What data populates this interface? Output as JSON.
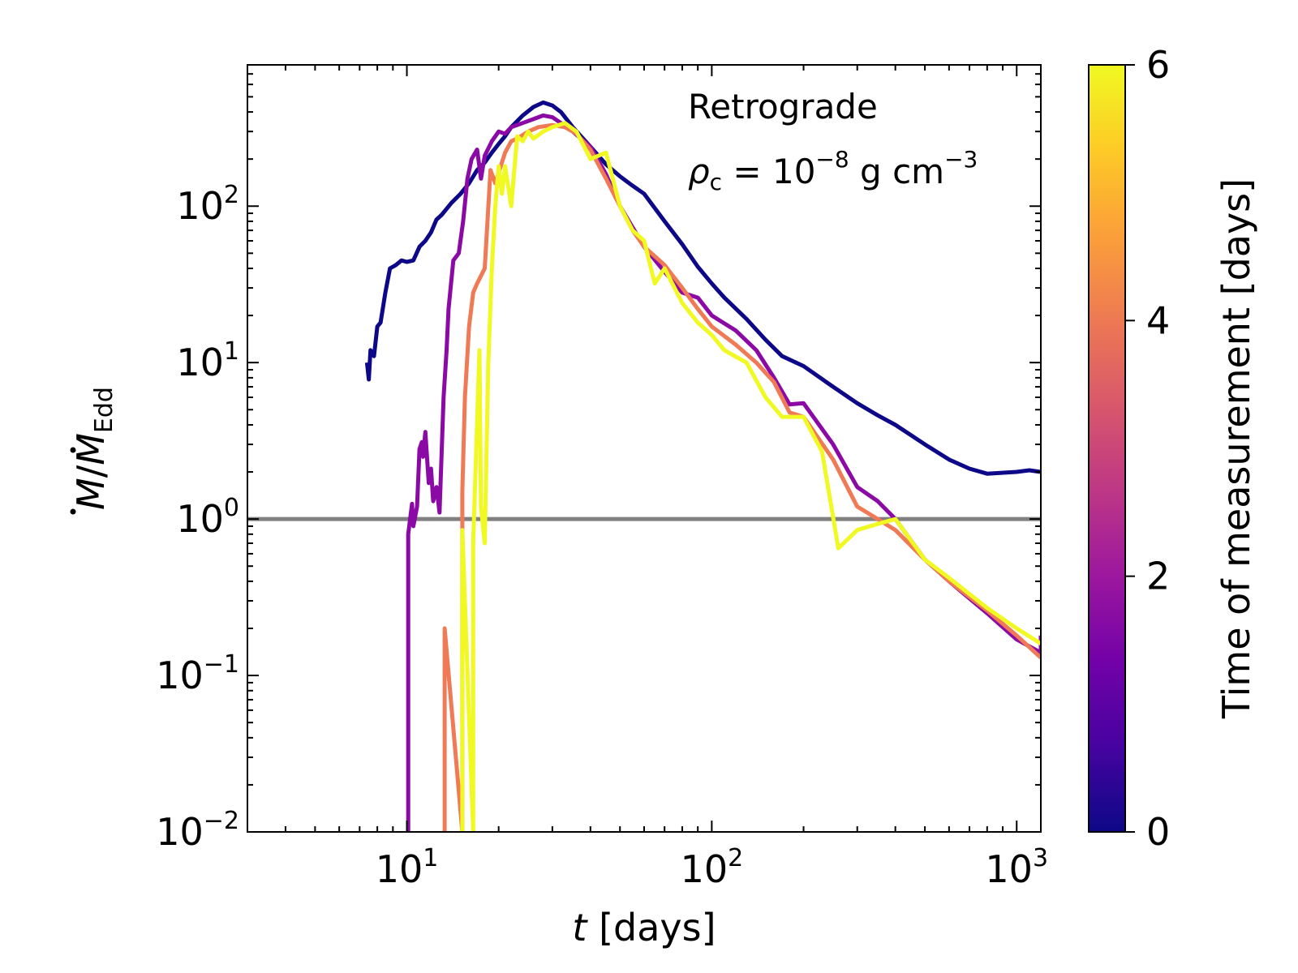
{
  "chart_data": {
    "type": "line",
    "xscale": "log",
    "yscale": "log",
    "xlim": [
      3,
      1200
    ],
    "ylim": [
      0.01,
      800
    ],
    "xlabel": {
      "var": "t",
      "rest": " [days]"
    },
    "ylabel": {
      "base": "M",
      "sub": "Edd"
    },
    "x_ticks": [
      {
        "value": 10,
        "base": "10",
        "exp": "1"
      },
      {
        "value": 100,
        "base": "10",
        "exp": "2"
      },
      {
        "value": 1000,
        "base": "10",
        "exp": "3"
      }
    ],
    "y_ticks": [
      {
        "value": 0.01,
        "base": "10",
        "exp": "−2"
      },
      {
        "value": 0.1,
        "base": "10",
        "exp": "−1"
      },
      {
        "value": 1,
        "base": "10",
        "exp": "0"
      },
      {
        "value": 10,
        "base": "10",
        "exp": "1"
      },
      {
        "value": 100,
        "base": "10",
        "exp": "2"
      }
    ],
    "annotations": {
      "line1": "Retrograde",
      "rho_symbol": "ρ",
      "rho_sub": "c",
      "rho_eq": " = 10",
      "rho_exp": "−8",
      "rho_units_1": " g cm",
      "rho_units_exp": "−3"
    },
    "reference_line": {
      "y": 1,
      "color": "#808080"
    },
    "colorbar": {
      "label": "Time of measurement [days]",
      "range": [
        0,
        6
      ],
      "ticks": [
        {
          "value": 0,
          "label": "0"
        },
        {
          "value": 2,
          "label": "2"
        },
        {
          "value": 4,
          "label": "4"
        },
        {
          "value": 6,
          "label": "6"
        }
      ],
      "colormap": [
        "#0d0887",
        "#46039f",
        "#7201a8",
        "#9c179e",
        "#bd3786",
        "#d8576b",
        "#ed7953",
        "#fb9f3a",
        "#fdca26",
        "#f0f921"
      ]
    },
    "series": [
      {
        "color": "#0d0887",
        "points": [
          [
            7.4,
            10
          ],
          [
            7.5,
            7.8
          ],
          [
            7.6,
            12
          ],
          [
            7.8,
            11
          ],
          [
            8,
            17
          ],
          [
            8.2,
            18
          ],
          [
            8.5,
            28
          ],
          [
            8.8,
            40
          ],
          [
            9.2,
            42
          ],
          [
            9.6,
            45
          ],
          [
            10,
            44
          ],
          [
            10.5,
            45
          ],
          [
            11,
            55
          ],
          [
            11.5,
            60
          ],
          [
            12,
            68
          ],
          [
            12.5,
            82
          ],
          [
            13,
            88
          ],
          [
            14,
            105
          ],
          [
            15,
            120
          ],
          [
            16,
            140
          ],
          [
            17,
            170
          ],
          [
            18,
            190
          ],
          [
            19,
            220
          ],
          [
            20,
            250
          ],
          [
            21,
            280
          ],
          [
            22,
            320
          ],
          [
            24,
            380
          ],
          [
            26,
            430
          ],
          [
            28,
            460
          ],
          [
            30,
            440
          ],
          [
            32,
            400
          ],
          [
            35,
            320
          ],
          [
            40,
            240
          ],
          [
            45,
            185
          ],
          [
            50,
            155
          ],
          [
            55,
            135
          ],
          [
            60,
            120
          ],
          [
            70,
            80
          ],
          [
            80,
            57
          ],
          [
            90,
            41
          ],
          [
            100,
            32
          ],
          [
            110,
            26
          ],
          [
            130,
            19
          ],
          [
            150,
            14
          ],
          [
            170,
            11
          ],
          [
            200,
            9.5
          ],
          [
            250,
            7
          ],
          [
            300,
            5.5
          ],
          [
            350,
            4.6
          ],
          [
            400,
            4
          ],
          [
            500,
            3
          ],
          [
            600,
            2.4
          ],
          [
            700,
            2.1
          ],
          [
            800,
            1.95
          ],
          [
            1000,
            2
          ],
          [
            1100,
            2.05
          ],
          [
            1200,
            2
          ]
        ]
      },
      {
        "color": "#8b0aa5",
        "points": [
          [
            10.1,
            0.01
          ],
          [
            10.1,
            0.8
          ],
          [
            10.4,
            1.25
          ],
          [
            10.5,
            0.9
          ],
          [
            10.8,
            1.2
          ],
          [
            11,
            2.8
          ],
          [
            11.2,
            3.1
          ],
          [
            11.3,
            2.5
          ],
          [
            11.5,
            3.6
          ],
          [
            11.8,
            1.7
          ],
          [
            12,
            2.1
          ],
          [
            12.2,
            1.3
          ],
          [
            12.5,
            1.6
          ],
          [
            12.8,
            1.1
          ],
          [
            13.2,
            6
          ],
          [
            13.5,
            12
          ],
          [
            13.7,
            22
          ],
          [
            14.2,
            45
          ],
          [
            14.8,
            50
          ],
          [
            15.3,
            80
          ],
          [
            15.8,
            150
          ],
          [
            16.3,
            200
          ],
          [
            17,
            230
          ],
          [
            17.5,
            150
          ],
          [
            18,
            210
          ],
          [
            19,
            260
          ],
          [
            20,
            300
          ],
          [
            21,
            290
          ],
          [
            22,
            320
          ],
          [
            24,
            340
          ],
          [
            26,
            360
          ],
          [
            28,
            380
          ],
          [
            30,
            370
          ],
          [
            32,
            340
          ],
          [
            35,
            300
          ],
          [
            40,
            240
          ],
          [
            45,
            160
          ],
          [
            50,
            100
          ],
          [
            60,
            55
          ],
          [
            70,
            38
          ],
          [
            80,
            28
          ],
          [
            90,
            26
          ],
          [
            100,
            20
          ],
          [
            120,
            16
          ],
          [
            140,
            12
          ],
          [
            160,
            8
          ],
          [
            180,
            5.4
          ],
          [
            200,
            5.5
          ],
          [
            250,
            3
          ],
          [
            300,
            1.6
          ],
          [
            350,
            1.3
          ],
          [
            400,
            1
          ],
          [
            500,
            0.55
          ],
          [
            600,
            0.4
          ],
          [
            800,
            0.25
          ],
          [
            1000,
            0.17
          ],
          [
            1200,
            0.14
          ],
          [
            1200,
            0.18
          ]
        ]
      },
      {
        "color": "#ef7a55",
        "points": [
          [
            13.3,
            0.01
          ],
          [
            13.3,
            0.2
          ],
          [
            15.2,
            0.01
          ],
          [
            15.2,
            1.5
          ],
          [
            15.5,
            6
          ],
          [
            16,
            17
          ],
          [
            16.5,
            28
          ],
          [
            17,
            32
          ],
          [
            18,
            40
          ],
          [
            18.8,
            170
          ],
          [
            19.5,
            140
          ],
          [
            21,
            220
          ],
          [
            22,
            260
          ],
          [
            23,
            270
          ],
          [
            25,
            300
          ],
          [
            27,
            320
          ],
          [
            30,
            330
          ],
          [
            33,
            320
          ],
          [
            36,
            290
          ],
          [
            40,
            230
          ],
          [
            45,
            150
          ],
          [
            50,
            100
          ],
          [
            55,
            70
          ],
          [
            60,
            55
          ],
          [
            70,
            42
          ],
          [
            80,
            30
          ],
          [
            90,
            22
          ],
          [
            100,
            17
          ],
          [
            120,
            13
          ],
          [
            140,
            10
          ],
          [
            160,
            7.5
          ],
          [
            180,
            4.8
          ],
          [
            200,
            4.5
          ],
          [
            250,
            2.4
          ],
          [
            300,
            1.2
          ],
          [
            350,
            1
          ],
          [
            400,
            0.85
          ],
          [
            500,
            0.55
          ],
          [
            600,
            0.4
          ],
          [
            800,
            0.26
          ],
          [
            1000,
            0.18
          ],
          [
            1200,
            0.13
          ]
        ]
      },
      {
        "color": "#f0f921",
        "points": [
          [
            15.2,
            0.01
          ],
          [
            15.2,
            0.85
          ],
          [
            16.5,
            0.01
          ],
          [
            16.5,
            0.7
          ],
          [
            17.3,
            12
          ],
          [
            17.5,
            1.2
          ],
          [
            18,
            0.7
          ],
          [
            18.5,
            10
          ],
          [
            19,
            40
          ],
          [
            19.5,
            100
          ],
          [
            20,
            180
          ],
          [
            20.5,
            120
          ],
          [
            21,
            180
          ],
          [
            22,
            100
          ],
          [
            23,
            280
          ],
          [
            24,
            260
          ],
          [
            25,
            300
          ],
          [
            26,
            270
          ],
          [
            28,
            300
          ],
          [
            30,
            320
          ],
          [
            33,
            340
          ],
          [
            36,
            300
          ],
          [
            40,
            200
          ],
          [
            45,
            220
          ],
          [
            50,
            100
          ],
          [
            55,
            70
          ],
          [
            60,
            60
          ],
          [
            65,
            32
          ],
          [
            70,
            40
          ],
          [
            80,
            24
          ],
          [
            90,
            18
          ],
          [
            100,
            15
          ],
          [
            110,
            12
          ],
          [
            130,
            10
          ],
          [
            150,
            6
          ],
          [
            170,
            4.5
          ],
          [
            200,
            4.5
          ],
          [
            230,
            2.7
          ],
          [
            260,
            0.65
          ],
          [
            300,
            0.85
          ],
          [
            350,
            0.93
          ],
          [
            400,
            1
          ],
          [
            500,
            0.55
          ],
          [
            600,
            0.42
          ],
          [
            800,
            0.27
          ],
          [
            1000,
            0.2
          ],
          [
            1200,
            0.16
          ]
        ]
      }
    ]
  }
}
